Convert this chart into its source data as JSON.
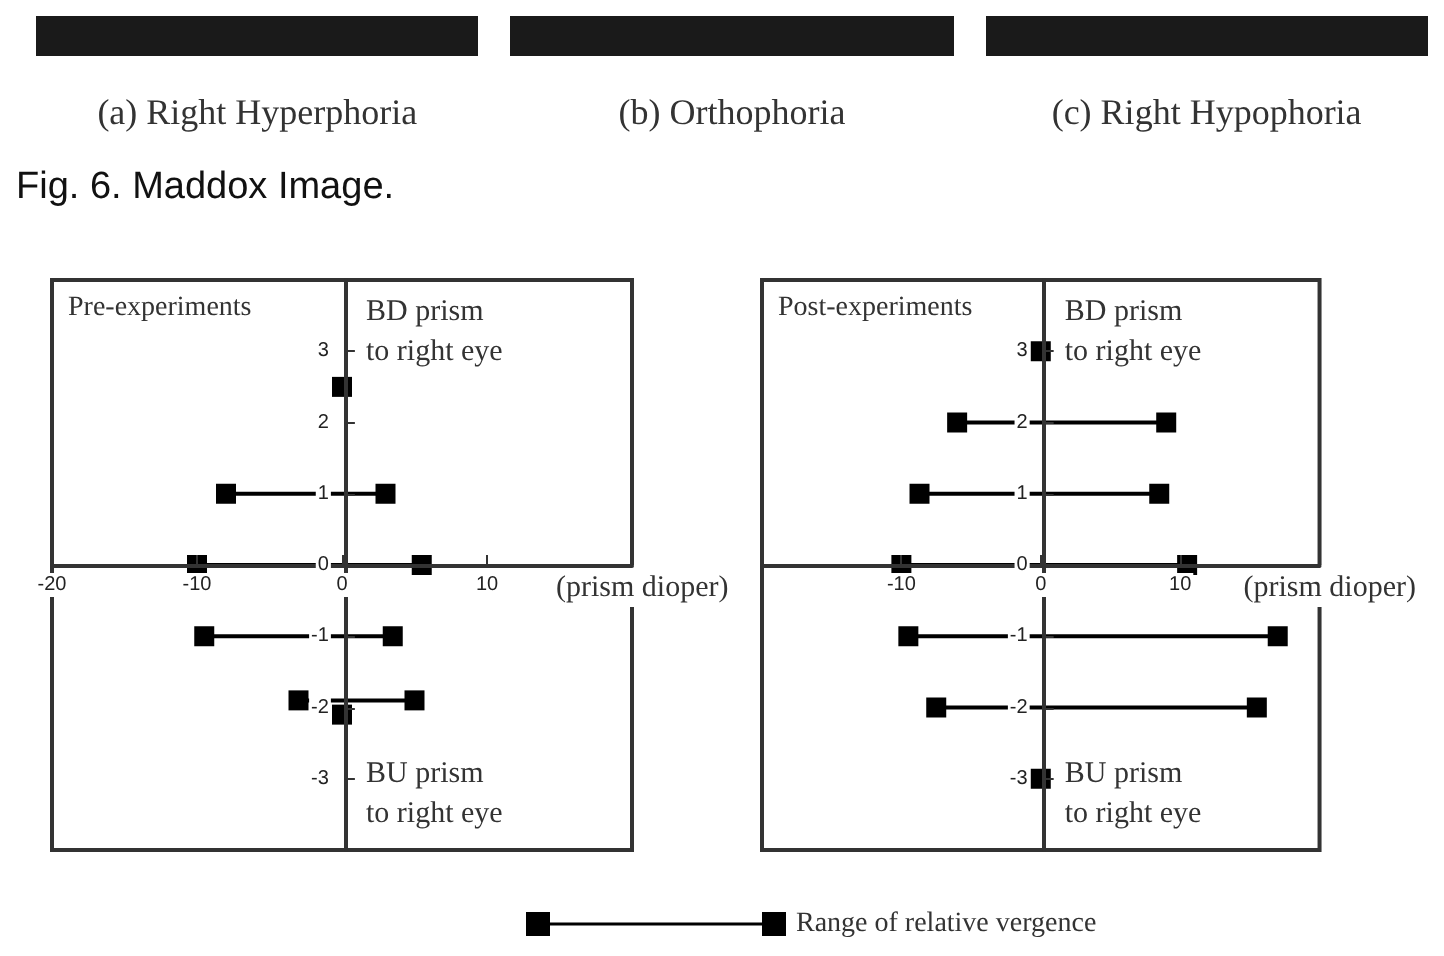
{
  "chart_data": [
    {
      "type": "other",
      "title": "Fig. 6. Maddox Image.",
      "annotations": [
        "(a) Right Hyperphoria",
        "(b) Orthophoria",
        "(c) Right Hypophoria"
      ]
    },
    {
      "type": "line",
      "title": "Pre-experiments",
      "xlabel": "(prism dioper)",
      "xlim": [
        -20,
        20
      ],
      "xticks": [
        -20,
        -10,
        0,
        10
      ],
      "ylim": [
        -4,
        4
      ],
      "yticks": [
        -3,
        -2,
        -1,
        0,
        1,
        2,
        3
      ],
      "grid": false,
      "marker": "square",
      "line_style": "solid",
      "legend": "bottom",
      "annotations": [
        "BD prism\nto right eye",
        "BU prism\nto right eye"
      ],
      "series": [
        {
          "name": "Range of relative vergence",
          "color": "#000000",
          "x": [
            0,
            null,
            -8,
            3,
            null,
            -10,
            5.5,
            null,
            -9.5,
            3.5,
            null,
            -3,
            5,
            null,
            0
          ],
          "values": [
            2.5,
            null,
            1,
            1,
            null,
            0,
            0,
            null,
            -1,
            -1,
            null,
            -1.9,
            -1.9,
            null,
            -2.1
          ]
        }
      ]
    },
    {
      "type": "line",
      "title": "Post-experiments",
      "xlabel": "(prism dioper)",
      "xlim": [
        -20,
        20
      ],
      "xticks": [
        -10,
        0,
        10
      ],
      "ylim": [
        -4,
        4
      ],
      "yticks": [
        -3,
        -2,
        -1,
        0,
        1,
        2,
        3
      ],
      "grid": false,
      "marker": "square",
      "line_style": "solid",
      "annotations": [
        "BD prism\nto right eye",
        "BU prism\nto right eye"
      ],
      "series": [
        {
          "color": "#000000",
          "x": [
            0,
            null,
            -6,
            9,
            null,
            -8.7,
            8.5,
            null,
            -10,
            10.5,
            null,
            -9.5,
            17,
            null,
            -7.5,
            15.5,
            null,
            0
          ],
          "values": [
            3,
            null,
            2,
            2,
            null,
            1,
            1,
            null,
            0,
            0,
            null,
            -1,
            -1,
            null,
            -2,
            -2,
            null,
            -3
          ]
        }
      ]
    }
  ]
}
